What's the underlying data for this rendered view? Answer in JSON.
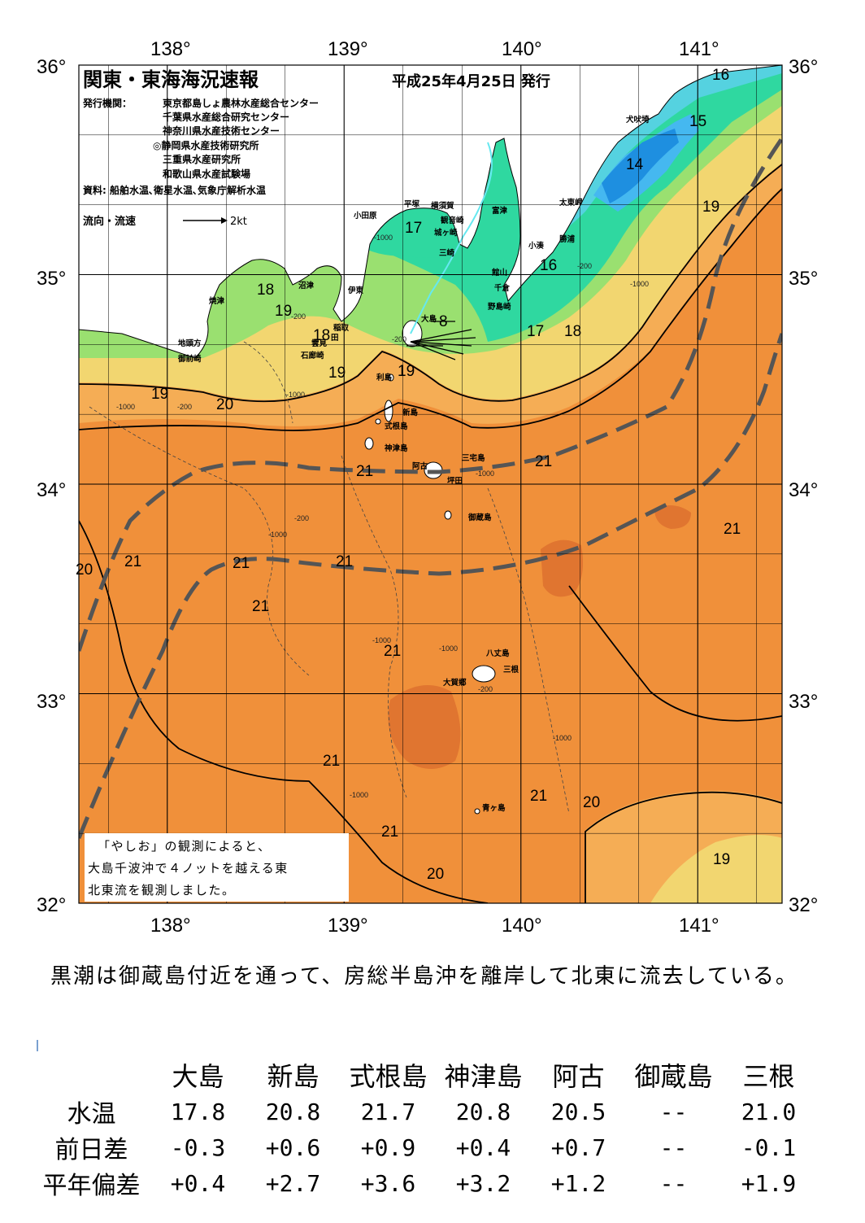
{
  "header": {
    "title": "関東・東海海況速報",
    "date": "平成25年4月25日 発行",
    "issuer_label": "発行機関：",
    "issuers": [
      "東京都島しょ農林水産総合センター",
      "千葉県水産総合研究センター",
      "神奈川県水産技術センター",
      "◎静岡県水産技術研究所",
      "三重県水産研究所",
      "和歌山県水産試験場"
    ],
    "source": "資料: 船舶水温､衛星水温､気象庁解析水温",
    "flow_legend_label": "流向・流速",
    "flow_legend_value": "2kt"
  },
  "axes": {
    "lon_ticks": [
      "138°",
      "139°",
      "140°",
      "141°"
    ],
    "lat_ticks": [
      "36°",
      "35°",
      "34°",
      "33°",
      "32°"
    ]
  },
  "colors": {
    "kuroshio_axis": "#555555",
    "temp_14": "#1e8fe0",
    "temp_15": "#45b8f0",
    "temp_16": "#55d2e0",
    "temp_17": "#2fd8a0",
    "temp_18": "#9ae070",
    "temp_19": "#f2d670",
    "temp_20": "#f5ad55",
    "temp_21": "#f0903a",
    "temp_22": "#e07530"
  },
  "places": {
    "inubosaki": "犬吠埼",
    "taitomisaki": "太東岬",
    "katsuura": "勝浦",
    "kominato": "小湊",
    "futtsu": "富津",
    "tateyama": "館山",
    "chikura": "千倉",
    "nojimazaki": "野島崎",
    "yokosuka": "横須賀",
    "kannonzaki": "観音崎",
    "hirastuka": "平塚",
    "odawara": "小田原",
    "jogasaki": "城ヶ崎",
    "misaki": "三崎",
    "numazu": "沼津",
    "ito": "伊東",
    "yaizu": "焼津",
    "inatori": "稲取",
    "mera": "雲見",
    "irozaki": "石廊崎",
    "jizogashira": "地頭方",
    "omaezaki": "御前崎",
    "oshima": "大島",
    "toshima": "利島",
    "niijima": "新島",
    "shikinejima": "式根島",
    "kozushima": "神津島",
    "miyakejima": "三宅島",
    "ako": "阿古",
    "tsubota": "坪田",
    "mikurajima": "御蔵島",
    "hachijojima": "八丈島",
    "mine": "三根",
    "okago": "大賀郷",
    "aogashima": "青ヶ島",
    "shimoda": "田"
  },
  "temp_labels": [
    "16",
    "15",
    "14",
    "19",
    "16",
    "17",
    "18",
    "17",
    "18",
    "19",
    "18",
    "19",
    "19",
    "19",
    "20",
    "20",
    "21",
    "21",
    "21",
    "21",
    "21",
    "21",
    "21",
    "21",
    "21",
    "21",
    "21",
    "20",
    "19",
    "20",
    "8"
  ],
  "depth_labels": [
    "-1000",
    "-200",
    "-1000",
    "-200",
    "-1000",
    "-200",
    "-200",
    "-1000",
    "-1000",
    "-1000",
    "-1000",
    "-200",
    "-1000",
    "-1000",
    "-1000",
    "-200"
  ],
  "note": {
    "line1": "「やしお」の観測によると、",
    "line2": "大島千波沖で４ノットを越える東",
    "line3": "北東流を観測しました。"
  },
  "summary": "黒潮は御蔵島付近を通って、房総半島沖を離岸して北東に流去している。",
  "observations": {
    "stations": [
      "大島",
      "新島",
      "式根島",
      "神津島",
      "阿古",
      "御蔵島",
      "三根"
    ],
    "rows": [
      {
        "label": "水温",
        "values": [
          "17.8",
          "20.8",
          "21.7",
          "20.8",
          "20.5",
          "--",
          "21.0"
        ]
      },
      {
        "label": "前日差",
        "values": [
          "-0.3",
          "+0.6",
          "+0.9",
          "+0.4",
          "+0.7",
          "--",
          "-0.1"
        ]
      },
      {
        "label": "平年偏差",
        "values": [
          "+0.4",
          "+2.7",
          "+3.6",
          "+3.2",
          "+1.2",
          "--",
          "+1.9"
        ]
      }
    ]
  }
}
